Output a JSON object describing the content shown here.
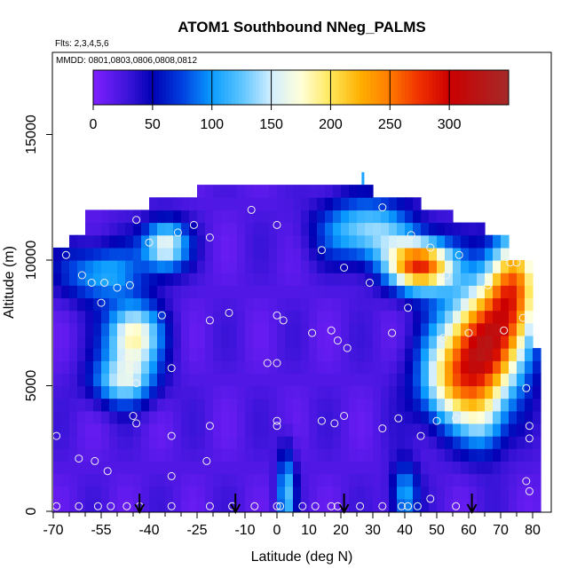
{
  "chart_data": {
    "type": "heatmap",
    "title": "ATOM1 Southbound NNeg_PALMS",
    "subtitle": "Flts: 2,3,4,5,6",
    "annotation": "MMDD: 0801,0803,0806,0808,0812",
    "xlabel": "Latitude (deg N)",
    "ylabel": "Altitude (m)",
    "xlim": [
      -70,
      85
    ],
    "ylim": [
      0,
      18500
    ],
    "x_tick_labels": [
      "-70",
      "-55",
      "-40",
      "-25",
      "-10",
      "0",
      "10",
      "20",
      "30",
      "40",
      "50",
      "60",
      "70",
      "80"
    ],
    "x_tick_values": [
      -70,
      -55,
      -40,
      -25,
      -10,
      0,
      10,
      20,
      30,
      40,
      50,
      60,
      70,
      80
    ],
    "x_minor_ticks": [
      -65,
      -60,
      -50,
      -45,
      -35,
      -30,
      -20,
      -15,
      -5,
      5,
      15,
      25,
      35,
      45,
      55,
      65,
      75
    ],
    "y_ticks": [
      0,
      5000,
      10000,
      15000
    ],
    "colorbar": {
      "range": [
        0,
        350
      ],
      "tick_labels": [
        "0",
        "50",
        "100",
        "150",
        "200",
        "250",
        "300"
      ],
      "tick_values": [
        0,
        50,
        100,
        150,
        200,
        250,
        300
      ],
      "stops": [
        {
          "v": 0,
          "color": "#7f20ff"
        },
        {
          "v": 30,
          "color": "#3a14d8"
        },
        {
          "v": 50,
          "color": "#0000b4"
        },
        {
          "v": 75,
          "color": "#0040e0"
        },
        {
          "v": 100,
          "color": "#0a9cff"
        },
        {
          "v": 125,
          "color": "#5cc4ff"
        },
        {
          "v": 150,
          "color": "#d2eeff"
        },
        {
          "v": 175,
          "color": "#ffffd9"
        },
        {
          "v": 200,
          "color": "#ffe75a"
        },
        {
          "v": 225,
          "color": "#ffb000"
        },
        {
          "v": 250,
          "color": "#ff7a00"
        },
        {
          "v": 275,
          "color": "#f03000"
        },
        {
          "v": 300,
          "color": "#cc0000"
        },
        {
          "v": 350,
          "color": "#a52a2a"
        }
      ]
    },
    "field": {
      "x_start": -70,
      "x_step": 2.5,
      "y_start": 0,
      "y_step": 500,
      "blobs": [
        {
          "x": -45,
          "y": 7000,
          "sx": 6,
          "sy": 900,
          "amp": 170
        },
        {
          "x": -48,
          "y": 5200,
          "sx": 7,
          "sy": 700,
          "amp": 120
        },
        {
          "x": -35,
          "y": 10600,
          "sx": 5,
          "sy": 700,
          "amp": 150
        },
        {
          "x": -55,
          "y": 9500,
          "sx": 9,
          "sy": 800,
          "amp": 90
        },
        {
          "x": 45,
          "y": 9800,
          "sx": 7,
          "sy": 700,
          "amp": 260
        },
        {
          "x": 64,
          "y": 6600,
          "sx": 9,
          "sy": 1600,
          "amp": 260
        },
        {
          "x": 74,
          "y": 9000,
          "sx": 6,
          "sy": 1500,
          "amp": 210
        },
        {
          "x": 55,
          "y": 5000,
          "sx": 8,
          "sy": 1200,
          "amp": 120
        },
        {
          "x": 28,
          "y": 11200,
          "sx": 10,
          "sy": 900,
          "amp": 120
        },
        {
          "x": 3,
          "y": 800,
          "sx": 2,
          "sy": 1200,
          "amp": 100
        },
        {
          "x": 40,
          "y": 700,
          "sx": 3,
          "sy": 900,
          "amp": 90
        },
        {
          "x": 65,
          "y": 3500,
          "sx": 5,
          "sy": 1000,
          "amp": 70
        }
      ],
      "coverage": [
        {
          "x0": -70,
          "x1": -65,
          "top": 10500
        },
        {
          "x0": -65,
          "x1": -60,
          "top": 11000
        },
        {
          "x0": -60,
          "x1": -40,
          "top": 11800
        },
        {
          "x0": -40,
          "x1": -25,
          "top": 12200
        },
        {
          "x0": -25,
          "x1": 0,
          "top": 12700
        },
        {
          "x0": 0,
          "x1": 30,
          "top": 13000
        },
        {
          "x0": 30,
          "x1": 45,
          "top": 12500
        },
        {
          "x0": 45,
          "x1": 55,
          "top": 12000
        },
        {
          "x0": 55,
          "x1": 65,
          "top": 11500
        },
        {
          "x0": 65,
          "x1": 72,
          "top": 11000
        },
        {
          "x0": 72,
          "x1": 80,
          "top": 10000
        },
        {
          "x0": 80,
          "x1": 82,
          "top": 6500
        }
      ]
    },
    "sample_points": [
      [
        -66,
        10200
      ],
      [
        -61,
        9400
      ],
      [
        -58,
        9100
      ],
      [
        -54,
        9100
      ],
      [
        -55,
        8300
      ],
      [
        -50,
        8900
      ],
      [
        -46,
        9000
      ],
      [
        -44,
        11600
      ],
      [
        -40,
        10700
      ],
      [
        -31,
        11100
      ],
      [
        -26,
        11400
      ],
      [
        -21,
        10900
      ],
      [
        -8,
        12000
      ],
      [
        0,
        11400
      ],
      [
        14,
        10400
      ],
      [
        21,
        9700
      ],
      [
        29,
        9100
      ],
      [
        33,
        12100
      ],
      [
        42,
        11000
      ],
      [
        48,
        10500
      ],
      [
        53,
        9400
      ],
      [
        57,
        10200
      ],
      [
        66,
        9000
      ],
      [
        73,
        9900
      ],
      [
        75,
        9900
      ],
      [
        77,
        7700
      ],
      [
        71,
        7200
      ],
      [
        60,
        7100
      ],
      [
        52,
        6900
      ],
      [
        41,
        8100
      ],
      [
        36,
        7100
      ],
      [
        17,
        7200
      ],
      [
        19,
        6800
      ],
      [
        22,
        6500
      ],
      [
        11,
        7100
      ],
      [
        0,
        7800
      ],
      [
        2,
        7600
      ],
      [
        -15,
        7900
      ],
      [
        -21,
        7600
      ],
      [
        -36,
        7800
      ],
      [
        -47,
        6100
      ],
      [
        -45,
        5800
      ],
      [
        -44,
        5100
      ],
      [
        -33,
        5700
      ],
      [
        -3,
        5900
      ],
      [
        0,
        5900
      ],
      [
        -45,
        3800
      ],
      [
        -44,
        3500
      ],
      [
        -33,
        3000
      ],
      [
        -21,
        3400
      ],
      [
        0,
        3600
      ],
      [
        0,
        3400
      ],
      [
        14,
        3600
      ],
      [
        18,
        3500
      ],
      [
        21,
        3800
      ],
      [
        33,
        3300
      ],
      [
        38,
        3700
      ],
      [
        45,
        3000
      ],
      [
        50,
        3600
      ],
      [
        56,
        3700
      ],
      [
        78,
        4900
      ],
      [
        79,
        2900
      ],
      [
        79,
        3400
      ],
      [
        78,
        1200
      ],
      [
        79,
        800
      ],
      [
        -69,
        3000
      ],
      [
        -62,
        2100
      ],
      [
        -57,
        2000
      ],
      [
        -53,
        1600
      ],
      [
        -33,
        1400
      ],
      [
        -22,
        2000
      ],
      [
        -69,
        200
      ],
      [
        -62,
        200
      ],
      [
        -56,
        200
      ],
      [
        -52,
        200
      ],
      [
        -47,
        200
      ],
      [
        -43,
        200
      ],
      [
        -33,
        200
      ],
      [
        -21,
        200
      ],
      [
        -14,
        200
      ],
      [
        -7,
        200
      ],
      [
        0,
        200
      ],
      [
        1,
        200
      ],
      [
        8,
        200
      ],
      [
        12,
        200
      ],
      [
        17,
        200
      ],
      [
        19,
        200
      ],
      [
        26,
        200
      ],
      [
        33,
        200
      ],
      [
        39,
        200
      ],
      [
        41,
        200
      ],
      [
        44,
        200
      ],
      [
        48,
        500
      ],
      [
        56,
        200
      ]
    ],
    "arrows_x": [
      -43,
      -13,
      21,
      61
    ]
  }
}
